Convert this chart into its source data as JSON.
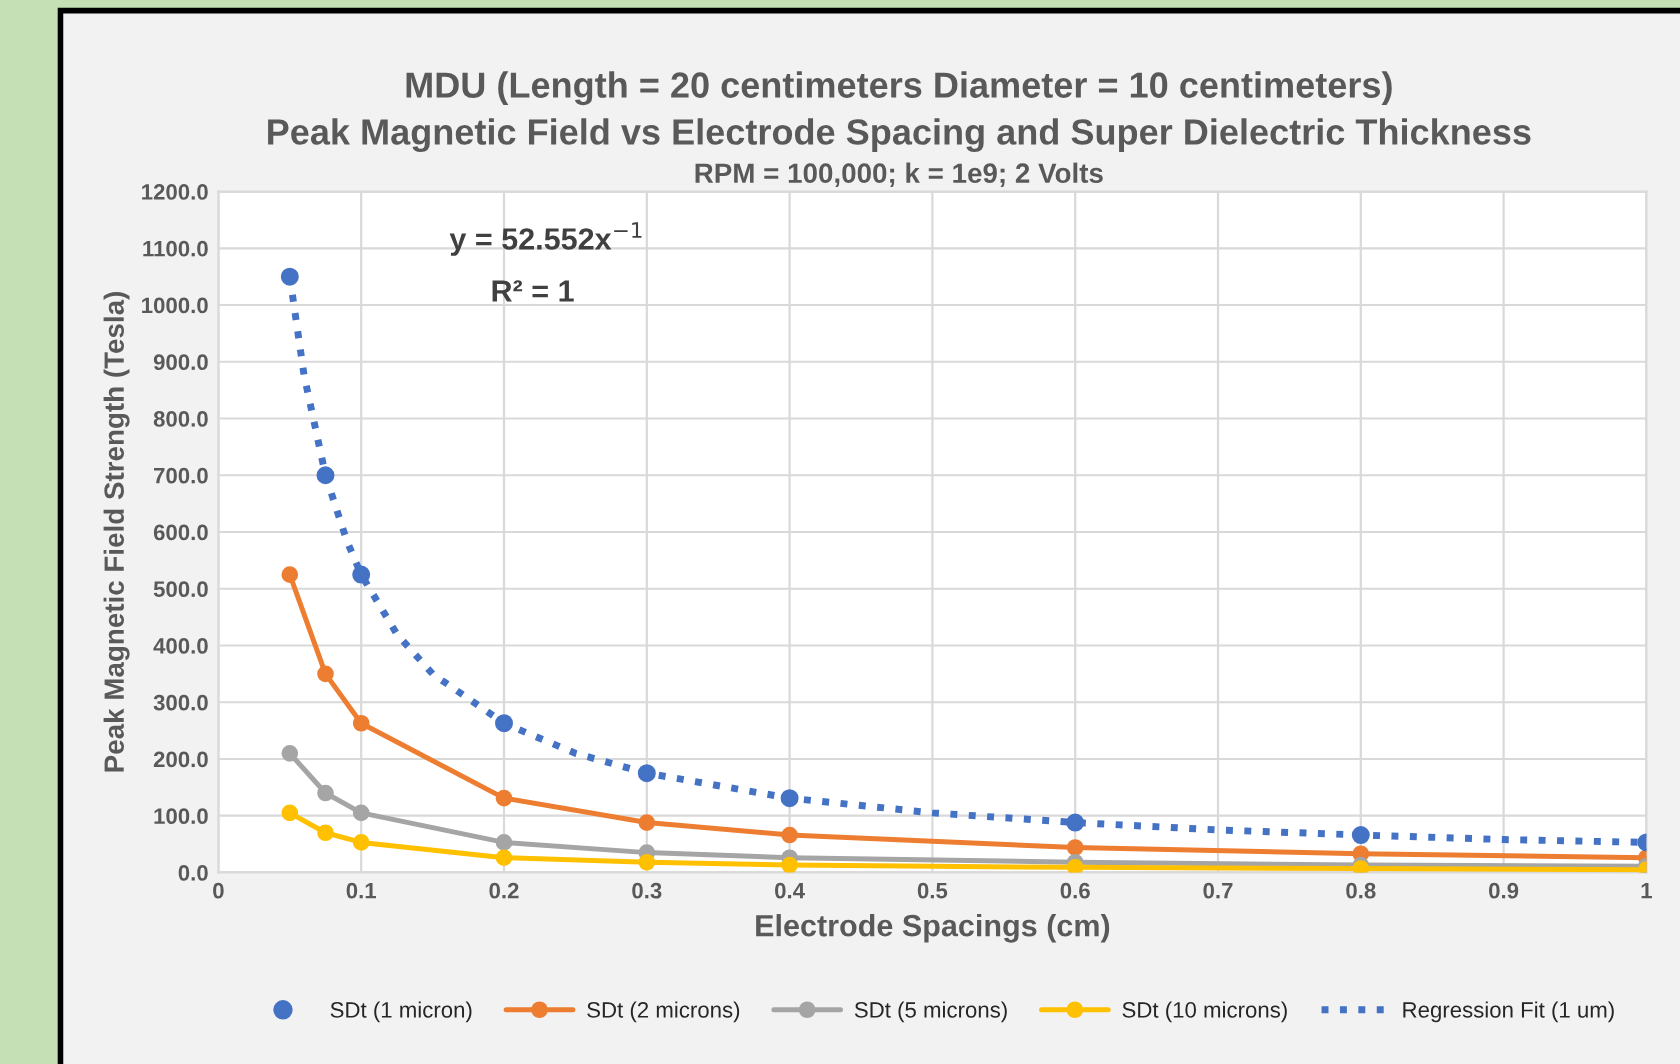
{
  "chart_data": {
    "type": "line",
    "title": "MDU (Length = 20 centimeters Diameter = 10 centimeters)\nPeak Magnetic Field vs Electrode Spacing and Super Dielectric Thickness",
    "subtitle": "RPM = 100,000; k = 1e9; 2 Volts",
    "xlabel": "Electrode Spacings (cm)",
    "ylabel": "Peak Magnetic Field Strength (Tesla)",
    "x": [
      0.05,
      0.075,
      0.1,
      0.2,
      0.3,
      0.4,
      0.6,
      0.8,
      1.0
    ],
    "series": [
      {
        "name": "SDt (1 micron)",
        "type": "scatter",
        "color": "#4472c4",
        "marker": "circle",
        "values": [
          1050,
          700,
          525,
          263,
          175,
          131,
          88,
          66,
          53
        ]
      },
      {
        "name": "SDt (2 microns)",
        "color": "#ed7d31",
        "marker": "circle",
        "line_style": "solid",
        "values": [
          525,
          350,
          263,
          131,
          88,
          66,
          44,
          33,
          26
        ]
      },
      {
        "name": "SDt (5 microns)",
        "color": "#a5a5a5",
        "marker": "circle",
        "line_style": "solid",
        "values": [
          210,
          140,
          105,
          53,
          35,
          26,
          18,
          13,
          11
        ]
      },
      {
        "name": "SDt (10 microns)",
        "color": "#ffc000",
        "marker": "circle",
        "line_style": "solid",
        "values": [
          105,
          70,
          53,
          26,
          18,
          13,
          9,
          7,
          5
        ]
      },
      {
        "name": "Regression Fit (1 um)",
        "color": "#4472c4",
        "marker": "none",
        "line_style": "dotted",
        "x": [
          0.05,
          0.06,
          0.075,
          0.09,
          0.1,
          0.125,
          0.15,
          0.2,
          0.25,
          0.3,
          0.4,
          0.5,
          0.6,
          0.7,
          0.8,
          0.9,
          1.0
        ],
        "values": [
          1050,
          876,
          700,
          584,
          525,
          420,
          350,
          263,
          210,
          175,
          131,
          105,
          88,
          75,
          66,
          58,
          53
        ]
      }
    ],
    "xlim": [
      0,
      1
    ],
    "xticks": [
      0,
      0.1,
      0.2,
      0.3,
      0.4,
      0.5,
      0.6,
      0.7,
      0.8,
      0.9,
      1
    ],
    "ylim": [
      0,
      1200
    ],
    "yticks": [
      {
        "value": 0,
        "label": "0.0"
      },
      {
        "value": 100,
        "label": "100.0"
      },
      {
        "value": 200,
        "label": "200.0"
      },
      {
        "value": 300,
        "label": "300.0"
      },
      {
        "value": 400,
        "label": "400.0"
      },
      {
        "value": 500,
        "label": "500.0"
      },
      {
        "value": 600,
        "label": "600.0"
      },
      {
        "value": 700,
        "label": "700.0"
      },
      {
        "value": 800,
        "label": "800.0"
      },
      {
        "value": 900,
        "label": "900.0"
      },
      {
        "value": 1000,
        "label": "1000.0"
      },
      {
        "value": 1100,
        "label": "1100.0"
      },
      {
        "value": 1200,
        "label": "1200.0"
      }
    ],
    "annotations": [
      "y = 52.552x$^{−1}$",
      "R² = 1"
    ],
    "grid": true,
    "legend": "bottom"
  }
}
